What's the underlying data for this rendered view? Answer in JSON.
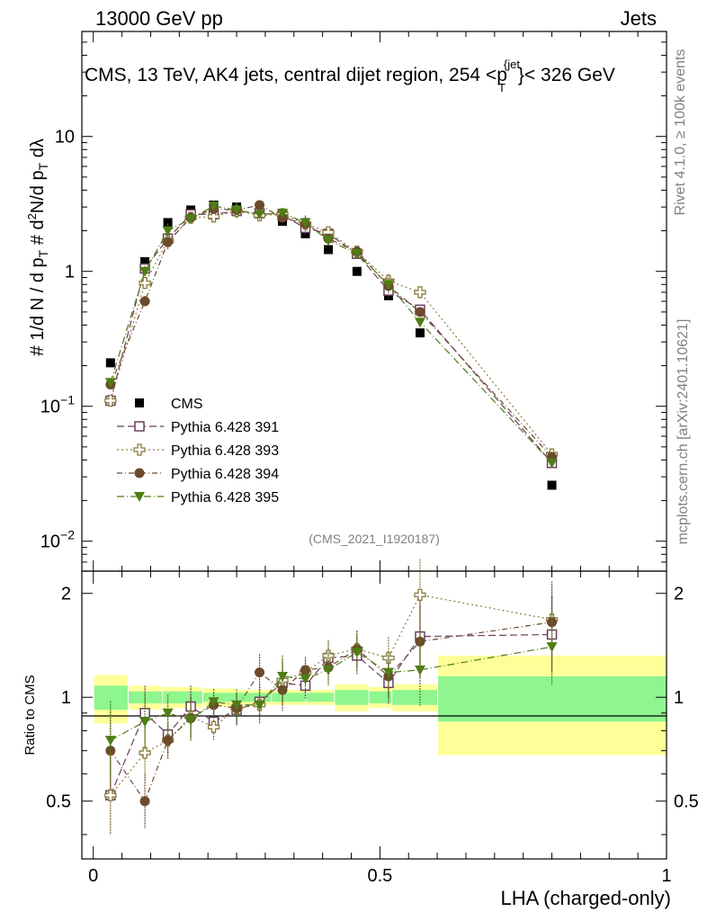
{
  "header": {
    "left": "13000 GeV pp",
    "right": "Jets",
    "title_part1": "CMS, 13 TeV, AK4 jets, central dijet region, 254 <p",
    "title_sup": "{jet",
    "title_sub": "T",
    "title_part2": "}< 326 GeV",
    "side_rivet": "Rivet 4.1.0, ≥ 100k events",
    "side_mcplots": "mcplots.cern.ch [arXiv:2401.10621]",
    "analysis_id": "(CMS_2021_I1920187)"
  },
  "colors": {
    "data": "#000000",
    "p391": "#6b3f5a",
    "p393": "#8b7a3a",
    "p394": "#6b4a2e",
    "p395": "#4f7d14",
    "band_inner": "#8ff58f",
    "band_outer": "#ffff99"
  },
  "chart_data": [
    {
      "type": "scatter",
      "panel": "main",
      "ylabel": "#frac{1}{d N / d p_T} #frac{d^2N}{d p_T dλ}",
      "ylabel_parts": [
        "#",
        "1",
        "d N / d p",
        "T",
        "#",
        "d",
        "2",
        "N",
        "d p",
        "T",
        "dλ"
      ],
      "yscale": "log",
      "ylim": [
        0.006,
        60
      ],
      "xlim": [
        -0.02,
        1.0
      ],
      "ytick_labels": [
        {
          "base": "10",
          "exp": "−2",
          "value": 0.01
        },
        {
          "base": "10",
          "exp": "−1",
          "value": 0.1
        },
        {
          "base": "1",
          "exp": "",
          "value": 1
        },
        {
          "base": "10",
          "exp": "",
          "value": 10
        }
      ],
      "x": [
        0.03,
        0.09,
        0.13,
        0.17,
        0.21,
        0.25,
        0.29,
        0.33,
        0.37,
        0.41,
        0.46,
        0.515,
        0.57,
        0.8
      ],
      "series": [
        {
          "name": "CMS",
          "key": "data",
          "marker": "square-filled",
          "values": [
            0.21,
            1.18,
            2.3,
            2.85,
            3.1,
            3.0,
            2.7,
            2.35,
            1.9,
            1.45,
            1.0,
            0.66,
            0.35,
            0.026
          ]
        },
        {
          "name": "Pythia 6.428 391",
          "key": "p391",
          "marker": "square-open",
          "line": "8,4",
          "values": [
            0.11,
            1.05,
            1.75,
            2.65,
            2.65,
            2.8,
            2.7,
            2.6,
            2.1,
            1.9,
            1.35,
            0.72,
            0.52,
            0.038
          ]
        },
        {
          "name": "Pythia 6.428 393",
          "key": "p393",
          "marker": "cross-open",
          "line": "2,3",
          "values": [
            0.11,
            0.82,
            1.68,
            2.5,
            2.55,
            2.8,
            2.6,
            2.65,
            2.25,
            1.95,
            1.4,
            0.85,
            0.7,
            0.044
          ]
        },
        {
          "name": "Pythia 6.428 394",
          "key": "p394",
          "marker": "circle-filled",
          "line": "6,3,1,3",
          "values": [
            0.145,
            0.6,
            1.65,
            2.5,
            2.9,
            2.85,
            3.1,
            2.5,
            2.25,
            1.75,
            1.4,
            0.78,
            0.5,
            0.042
          ]
        },
        {
          "name": "Pythia 6.428 395",
          "key": "p395",
          "marker": "triangle-down-filled",
          "line": "8,3,1,3",
          "values": [
            0.15,
            1.0,
            2.0,
            2.45,
            3.05,
            2.85,
            2.65,
            2.7,
            2.3,
            1.7,
            1.35,
            0.8,
            0.42,
            0.038
          ]
        }
      ]
    },
    {
      "type": "scatter",
      "panel": "ratio",
      "ylabel": "Ratio to CMS",
      "xlabel": "LHA (charged-only)",
      "ylim": [
        0.34,
        2.32
      ],
      "xlim": [
        -0.02,
        1.0
      ],
      "ytick_labels": [
        "0.5",
        "1",
        "2"
      ],
      "ytick_values": [
        0.5,
        1,
        2
      ],
      "xtick_labels": [
        "0",
        "0.5",
        "1"
      ],
      "xtick_values": [
        0,
        0.5,
        1
      ],
      "x": [
        0.03,
        0.09,
        0.13,
        0.17,
        0.21,
        0.25,
        0.29,
        0.33,
        0.37,
        0.41,
        0.46,
        0.515,
        0.57,
        0.8
      ],
      "series": [
        {
          "name": "Pythia 6.428 391",
          "key": "p391",
          "marker": "square-open",
          "line": "8,4",
          "values": [
            0.52,
            0.9,
            0.78,
            0.94,
            0.85,
            0.92,
            0.97,
            1.1,
            1.08,
            1.3,
            1.32,
            1.1,
            1.5,
            1.52
          ]
        },
        {
          "name": "Pythia 6.428 393",
          "key": "p393",
          "marker": "cross-open",
          "line": "2,3",
          "values": [
            0.52,
            0.69,
            0.75,
            0.88,
            0.82,
            0.93,
            0.95,
            1.12,
            1.18,
            1.32,
            1.38,
            1.3,
            1.98,
            1.68
          ]
        },
        {
          "name": "Pythia 6.428 394",
          "key": "p394",
          "marker": "circle-filled",
          "line": "6,3,1,3",
          "values": [
            0.7,
            0.5,
            0.75,
            0.87,
            0.95,
            0.93,
            1.18,
            1.05,
            1.2,
            1.22,
            1.38,
            1.15,
            1.45,
            1.65
          ]
        },
        {
          "name": "Pythia 6.428 395",
          "key": "p395",
          "marker": "triangle-down-filled",
          "line": "8,3,1,3",
          "values": [
            0.75,
            0.85,
            0.9,
            0.86,
            0.97,
            0.95,
            0.95,
            1.15,
            1.13,
            1.2,
            1.35,
            1.18,
            1.2,
            1.4
          ]
        }
      ],
      "band": {
        "edges": [
          0,
          0.06,
          0.12,
          0.19,
          0.25,
          0.31,
          0.37,
          0.42,
          0.48,
          0.52,
          0.6,
          1.0
        ],
        "inner": [
          0.08,
          0.04,
          0.04,
          0.03,
          0.03,
          0.03,
          0.03,
          0.05,
          0.04,
          0.05,
          0.15
        ],
        "outer": [
          0.16,
          0.08,
          0.07,
          0.06,
          0.05,
          0.05,
          0.05,
          0.09,
          0.07,
          0.09,
          0.32
        ]
      }
    }
  ]
}
